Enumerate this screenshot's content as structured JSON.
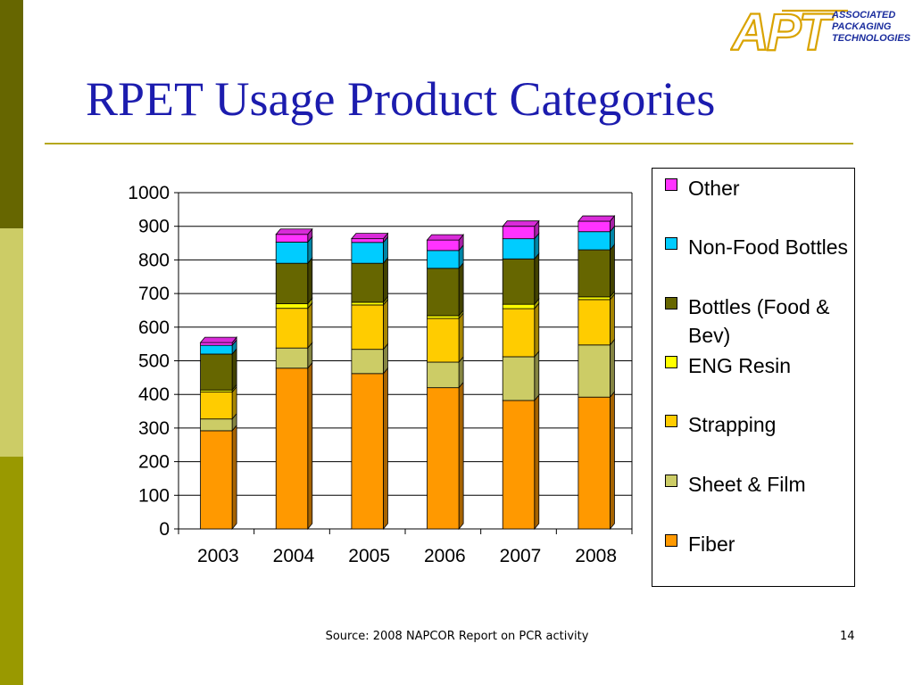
{
  "slide": {
    "title": "RPET Usage Product Categories",
    "source": "Source: 2008 NAPCOR Report on PCR activity",
    "page_number": "14"
  },
  "logo": {
    "mark": "APT",
    "lines": [
      "ASSOCIATED",
      "PACKAGING",
      "TECHNOLOGIES"
    ]
  },
  "colors": {
    "sidebar": [
      "#666600",
      "#CCCC66",
      "#999900"
    ],
    "title": "#1C1CAE",
    "rule": "#B5A81E"
  },
  "chart_data": {
    "type": "bar",
    "stacked": true,
    "categories": [
      "2003",
      "2004",
      "2005",
      "2006",
      "2007",
      "2008"
    ],
    "ylim": [
      0,
      1000
    ],
    "yticks": [
      0,
      100,
      200,
      300,
      400,
      500,
      600,
      700,
      800,
      900,
      1000
    ],
    "grid": true,
    "legend_position": "right",
    "series": [
      {
        "name": "Fiber",
        "color": "#FF9900",
        "values": [
          292,
          478,
          462,
          420,
          382,
          392
        ]
      },
      {
        "name": "Sheet & Film",
        "color": "#CCCC66",
        "values": [
          35,
          60,
          72,
          76,
          130,
          155
        ]
      },
      {
        "name": "Strapping",
        "color": "#FFCC00",
        "values": [
          80,
          118,
          132,
          130,
          143,
          135
        ]
      },
      {
        "name": "ENG Resin",
        "color": "#FFFF00",
        "values": [
          6,
          14,
          8,
          8,
          13,
          8
        ]
      },
      {
        "name": "Bottles (Food & Bev)",
        "color": "#666600",
        "values": [
          107,
          120,
          116,
          141,
          135,
          140
        ]
      },
      {
        "name": "Non-Food Bottles",
        "color": "#00CCFF",
        "values": [
          26,
          63,
          62,
          53,
          60,
          54
        ]
      },
      {
        "name": "Other",
        "color": "#FF33FF",
        "values": [
          8,
          23,
          11,
          31,
          37,
          31
        ]
      }
    ]
  },
  "legend": {
    "items": [
      {
        "label": "Other",
        "color": "#FF33FF"
      },
      {
        "label": "Non-Food Bottles",
        "color": "#00CCFF"
      },
      {
        "label": "Bottles (Food & Bev)",
        "color": "#666600"
      },
      {
        "label": "ENG Resin",
        "color": "#FFFF00"
      },
      {
        "label": "Strapping",
        "color": "#FFCC00"
      },
      {
        "label": "Sheet & Film",
        "color": "#CCCC66"
      },
      {
        "label": "Fiber",
        "color": "#FF9900"
      }
    ]
  }
}
